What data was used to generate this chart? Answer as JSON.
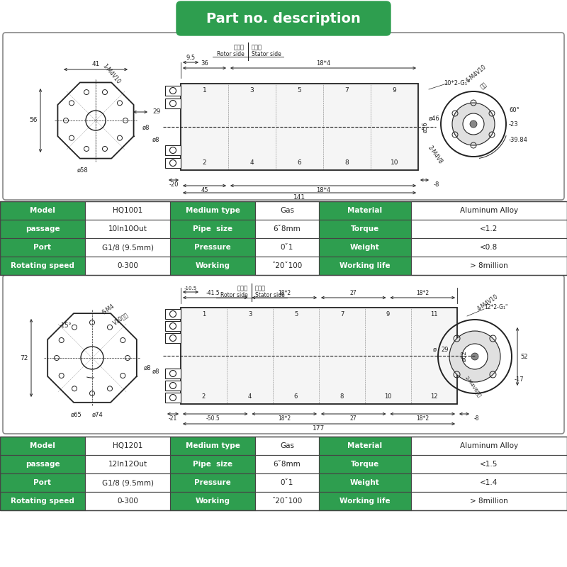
{
  "title": "Part no. description",
  "green": "#2e9e4f",
  "white": "#ffffff",
  "dark": "#222222",
  "gray_border": "#aaaaaa",
  "table1": {
    "rows": [
      [
        "Model",
        "HQ1001",
        "Medium type",
        "Gas",
        "Material",
        "Aluminum Alloy"
      ],
      [
        "passage",
        "10In10Out",
        "Pipe  size",
        "6ˇ8mm",
        "Torque",
        "<1.2"
      ],
      [
        "Port",
        "G1/8 (9.5mm)",
        "Pressure",
        "0ˇ1",
        "Weight",
        "<0.8"
      ],
      [
        "Rotating speed",
        "0-300",
        "Working",
        "ˇ20ˇ100",
        "Working life",
        "> 8million"
      ]
    ]
  },
  "table2": {
    "rows": [
      [
        "Model",
        "HQ1201",
        "Medium type",
        "Gas",
        "Material",
        "Aluminum Alloy"
      ],
      [
        "passage",
        "12In12Out",
        "Pipe  size",
        "6ˇ8mm",
        "Torque",
        "<1.5"
      ],
      [
        "Port",
        "G1/8 (9.5mm)",
        "Pressure",
        "0ˇ1",
        "Weight",
        "<1.4"
      ],
      [
        "Rotating speed",
        "0-300",
        "Working",
        "ˇ20ˇ100",
        "Working life",
        "> 8million"
      ]
    ]
  }
}
